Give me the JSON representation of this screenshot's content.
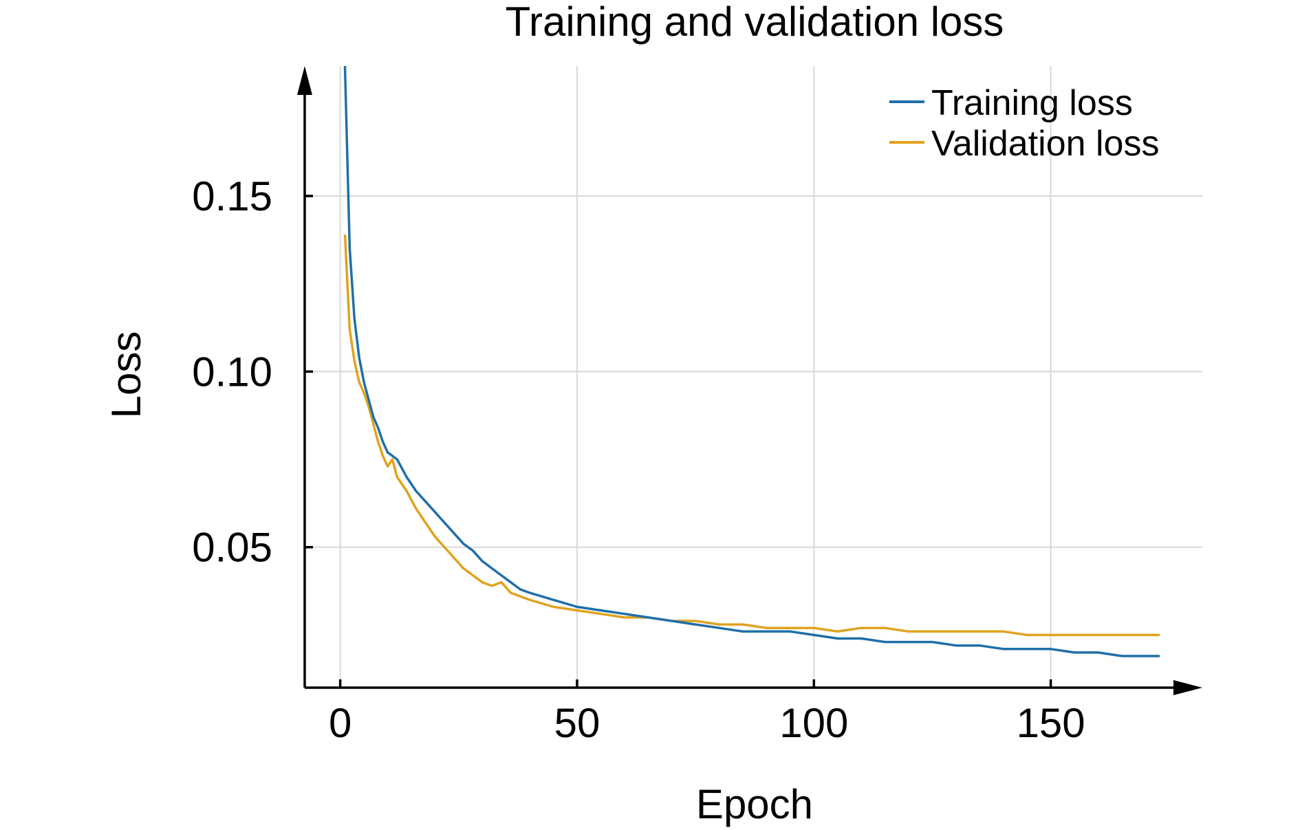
{
  "chart_data": {
    "type": "line",
    "title": "Training and validation loss",
    "xlabel": "Epoch",
    "ylabel": "Loss",
    "xlim": [
      -7.5,
      182
    ],
    "ylim": [
      0.01,
      0.187
    ],
    "x_ticks": [
      0,
      50,
      100,
      150
    ],
    "x_tick_labels": [
      "0",
      "50",
      "100",
      "150"
    ],
    "y_ticks": [
      0.05,
      0.1,
      0.15
    ],
    "y_tick_labels": [
      "0.05",
      "0.10",
      "0.15"
    ],
    "grid": true,
    "legend": "top-right",
    "series": [
      {
        "name": "Training loss",
        "color": "#1f6fa8",
        "points": [
          [
            1,
            0.187
          ],
          [
            2,
            0.135
          ],
          [
            3,
            0.115
          ],
          [
            4,
            0.104
          ],
          [
            5,
            0.097
          ],
          [
            6,
            0.092
          ],
          [
            7,
            0.087
          ],
          [
            8,
            0.084
          ],
          [
            9,
            0.08
          ],
          [
            10,
            0.077
          ],
          [
            12,
            0.075
          ],
          [
            14,
            0.07
          ],
          [
            16,
            0.066
          ],
          [
            18,
            0.063
          ],
          [
            20,
            0.06
          ],
          [
            22,
            0.057
          ],
          [
            24,
            0.054
          ],
          [
            26,
            0.051
          ],
          [
            28,
            0.049
          ],
          [
            30,
            0.046
          ],
          [
            32,
            0.044
          ],
          [
            34,
            0.042
          ],
          [
            36,
            0.04
          ],
          [
            38,
            0.038
          ],
          [
            40,
            0.037
          ],
          [
            45,
            0.035
          ],
          [
            50,
            0.033
          ],
          [
            55,
            0.032
          ],
          [
            60,
            0.031
          ],
          [
            65,
            0.03
          ],
          [
            70,
            0.029
          ],
          [
            75,
            0.028
          ],
          [
            80,
            0.027
          ],
          [
            85,
            0.026
          ],
          [
            90,
            0.026
          ],
          [
            95,
            0.026
          ],
          [
            100,
            0.025
          ],
          [
            105,
            0.024
          ],
          [
            110,
            0.024
          ],
          [
            115,
            0.023
          ],
          [
            120,
            0.023
          ],
          [
            125,
            0.023
          ],
          [
            130,
            0.022
          ],
          [
            135,
            0.022
          ],
          [
            140,
            0.021
          ],
          [
            145,
            0.021
          ],
          [
            150,
            0.021
          ],
          [
            155,
            0.02
          ],
          [
            160,
            0.02
          ],
          [
            165,
            0.019
          ],
          [
            170,
            0.019
          ],
          [
            173,
            0.019
          ]
        ]
      },
      {
        "name": "Validation loss",
        "color": "#e0a21e",
        "points": [
          [
            1,
            0.139
          ],
          [
            2,
            0.112
          ],
          [
            3,
            0.103
          ],
          [
            4,
            0.097
          ],
          [
            5,
            0.094
          ],
          [
            6,
            0.09
          ],
          [
            7,
            0.085
          ],
          [
            8,
            0.08
          ],
          [
            9,
            0.076
          ],
          [
            10,
            0.073
          ],
          [
            11,
            0.075
          ],
          [
            12,
            0.07
          ],
          [
            14,
            0.066
          ],
          [
            16,
            0.061
          ],
          [
            18,
            0.057
          ],
          [
            20,
            0.053
          ],
          [
            22,
            0.05
          ],
          [
            24,
            0.047
          ],
          [
            26,
            0.044
          ],
          [
            28,
            0.042
          ],
          [
            30,
            0.04
          ],
          [
            32,
            0.039
          ],
          [
            34,
            0.04
          ],
          [
            36,
            0.037
          ],
          [
            38,
            0.036
          ],
          [
            40,
            0.035
          ],
          [
            45,
            0.033
          ],
          [
            50,
            0.032
          ],
          [
            55,
            0.031
          ],
          [
            60,
            0.03
          ],
          [
            65,
            0.03
          ],
          [
            70,
            0.029
          ],
          [
            75,
            0.029
          ],
          [
            80,
            0.028
          ],
          [
            85,
            0.028
          ],
          [
            90,
            0.027
          ],
          [
            95,
            0.027
          ],
          [
            100,
            0.027
          ],
          [
            105,
            0.026
          ],
          [
            110,
            0.027
          ],
          [
            115,
            0.027
          ],
          [
            120,
            0.026
          ],
          [
            125,
            0.026
          ],
          [
            130,
            0.026
          ],
          [
            135,
            0.026
          ],
          [
            140,
            0.026
          ],
          [
            145,
            0.025
          ],
          [
            150,
            0.025
          ],
          [
            155,
            0.025
          ],
          [
            160,
            0.025
          ],
          [
            165,
            0.025
          ],
          [
            170,
            0.025
          ],
          [
            173,
            0.025
          ]
        ]
      }
    ]
  }
}
